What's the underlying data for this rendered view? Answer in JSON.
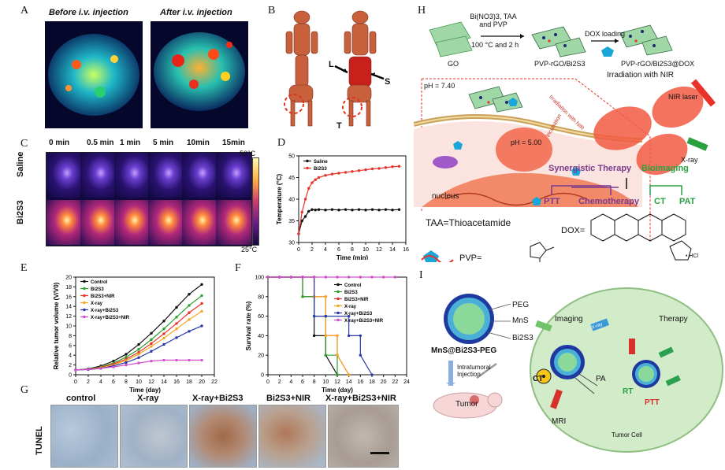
{
  "panel_labels": {
    "A": "A",
    "B": "B",
    "C": "C",
    "D": "D",
    "E": "E",
    "F": "F",
    "G": "G",
    "H": "H",
    "I": "I"
  },
  "panel_a": {
    "before": "Before i.v. injection",
    "after": "After i.v. injection"
  },
  "panel_b": {
    "L": "L",
    "S": "S",
    "T": "T"
  },
  "panel_c": {
    "times": [
      "0 min",
      "0.5 min",
      "1 min",
      "5 min",
      "10min",
      "15min"
    ],
    "rows": [
      "Saline",
      "Bi2S3"
    ],
    "scale_max": "50°C",
    "scale_min": "25°C"
  },
  "panel_g": {
    "side": "TUNEL",
    "cols": [
      "control",
      "X-ray",
      "X-ray+Bi2S3",
      "Bi2S3+NIR",
      "X-ray+Bi2S3+NIR"
    ]
  },
  "panel_h": {
    "reagents": "Bi(NO3)3, TAA and PVP",
    "conditions": "100 °C and 2 h",
    "go": "GO",
    "pvp_rgo": "PVP-rGO/Bi2S3",
    "dox_loading": "DOX loading",
    "pvp_rgo_dox": "PVP-rGO/Bi2S3@DOX",
    "irradiation": "Irradiation with NIR",
    "nir_laser": "NIR laser",
    "xray": "X-ray",
    "ph740": "pH = 7.40",
    "ph500": "pH = 5.00",
    "nucleus": "nucleus",
    "irr_nir": "Irradiation with NIR",
    "incubation": "Incubation",
    "synergistic": "Synergistic Therapy",
    "bioimaging": "Bioimaging",
    "ptt": "PTT",
    "chemo": "Chemotherapy",
    "ct": "CT",
    "pat": "PAT",
    "taa": "TAA=Thioacetamide",
    "pvp_eq": "PVP=",
    "dox_eq": "DOX=",
    "hcl": "• HCl"
  },
  "panel_i": {
    "peg": "PEG",
    "mns": "MnS",
    "bi2s3": "Bi2S3",
    "name": "MnS@Bi2S3-PEG",
    "inj": "Intratumoral Injection",
    "tumor": "Tumor",
    "imaging": "Imaging",
    "therapy": "Therapy",
    "ct": "CT",
    "pa": "PA",
    "mri": "MRI",
    "rt": "RT",
    "ptt": "PTT",
    "cell": "Tumor Cell",
    "xray_tag": "X-ray"
  },
  "chart_data": [
    {
      "type": "line",
      "panel": "D",
      "xlabel": "Time (min)",
      "ylabel": "Temperature (°C)",
      "xlim": [
        0,
        16
      ],
      "ylim": [
        30,
        50
      ],
      "xticks": [
        0,
        2,
        4,
        6,
        8,
        10,
        12,
        14,
        16
      ],
      "yticks": [
        30,
        35,
        40,
        45,
        50
      ],
      "legend_position": "top-left",
      "series": [
        {
          "name": "Saline",
          "color": "#111111",
          "x": [
            0,
            0.5,
            1,
            1.5,
            2,
            2.5,
            3,
            4,
            5,
            6,
            7,
            8,
            9,
            10,
            11,
            12,
            13,
            14,
            15
          ],
          "values": [
            32,
            35,
            36,
            37.2,
            37.6,
            37.5,
            37.6,
            37.5,
            37.6,
            37.5,
            37.6,
            37.5,
            37.6,
            37.5,
            37.6,
            37.5,
            37.6,
            37.5,
            37.6
          ]
        },
        {
          "name": "Bi2S3",
          "color": "#e8322a",
          "x": [
            0,
            0.5,
            1,
            1.5,
            2,
            2.5,
            3,
            4,
            5,
            6,
            7,
            8,
            9,
            10,
            11,
            12,
            13,
            14,
            15
          ],
          "values": [
            32,
            37,
            40,
            42.5,
            43.8,
            44.5,
            45,
            45.5,
            45.8,
            46,
            46.2,
            46.4,
            46.6,
            46.8,
            47,
            47.1,
            47.3,
            47.5,
            47.6
          ]
        }
      ]
    },
    {
      "type": "line",
      "panel": "E",
      "xlabel": "Time (day)",
      "ylabel": "Relative tumor volume (V/V0)",
      "xlim": [
        0,
        22
      ],
      "ylim": [
        0,
        20
      ],
      "xticks": [
        0,
        2,
        4,
        6,
        8,
        10,
        12,
        14,
        16,
        18,
        20,
        22
      ],
      "yticks": [
        0,
        2,
        4,
        6,
        8,
        10,
        12,
        14,
        16,
        18,
        20
      ],
      "legend_position": "top-left",
      "x": [
        0,
        2,
        4,
        6,
        8,
        10,
        12,
        14,
        16,
        18,
        20
      ],
      "series": [
        {
          "name": "Control",
          "color": "#111111",
          "values": [
            1,
            1.2,
            1.8,
            2.8,
            4.2,
            6.2,
            8.5,
            11,
            13.8,
            16.5,
            18.5
          ]
        },
        {
          "name": "Bi2S3",
          "color": "#2ca02c",
          "values": [
            1,
            1.1,
            1.6,
            2.4,
            3.6,
            5.2,
            7.2,
            9.4,
            11.8,
            14.2,
            16.2
          ]
        },
        {
          "name": "Bi2S3+NIR",
          "color": "#e8322a",
          "values": [
            1,
            1.1,
            1.5,
            2.2,
            3.2,
            4.6,
            6.4,
            8.4,
            10.5,
            12.7,
            14.6
          ]
        },
        {
          "name": "X-ray",
          "color": "#f5a623",
          "values": [
            1,
            1.1,
            1.4,
            2,
            2.9,
            4.2,
            5.8,
            7.5,
            9.4,
            11.3,
            13
          ]
        },
        {
          "name": "X-ray+Bi2S3",
          "color": "#2b3aa8",
          "values": [
            1,
            1.05,
            1.3,
            1.8,
            2.5,
            3.5,
            4.8,
            6.2,
            7.6,
            8.9,
            10
          ]
        },
        {
          "name": "X-ray+Bi2S3+NIR",
          "color": "#d44fd0",
          "values": [
            1,
            1.1,
            1.3,
            1.6,
            2,
            2.4,
            2.8,
            3,
            3,
            3,
            3
          ]
        }
      ]
    },
    {
      "type": "line",
      "panel": "F",
      "xlabel": "Time (day)",
      "ylabel": "Survival rate (%)",
      "xlim": [
        0,
        24
      ],
      "ylim": [
        0,
        100
      ],
      "xticks": [
        0,
        2,
        4,
        6,
        8,
        10,
        12,
        14,
        16,
        18,
        20,
        22,
        24
      ],
      "yticks": [
        0,
        20,
        40,
        60,
        80,
        100
      ],
      "legend_position": "right",
      "series": [
        {
          "name": "Control",
          "color": "#111111",
          "x": [
            0,
            2,
            4,
            6,
            6,
            8,
            8,
            10,
            10,
            12
          ],
          "values": [
            100,
            100,
            100,
            100,
            80,
            80,
            40,
            40,
            20,
            0
          ]
        },
        {
          "name": "Bi2S3",
          "color": "#2ca02c",
          "x": [
            0,
            2,
            4,
            6,
            6,
            8,
            8,
            10,
            10,
            12,
            12
          ],
          "values": [
            100,
            100,
            100,
            100,
            80,
            80,
            60,
            60,
            20,
            20,
            0
          ]
        },
        {
          "name": "Bi2S3+NIR",
          "color": "#e8322a",
          "x": [
            0,
            2,
            4,
            6,
            8,
            8,
            10,
            10,
            12,
            12,
            14
          ],
          "values": [
            100,
            100,
            100,
            100,
            100,
            80,
            80,
            40,
            40,
            20,
            0
          ]
        },
        {
          "name": "X-ray",
          "color": "#f5a623",
          "x": [
            0,
            2,
            4,
            6,
            8,
            8,
            10,
            10,
            12,
            12,
            14
          ],
          "values": [
            100,
            100,
            100,
            100,
            100,
            80,
            80,
            40,
            40,
            20,
            0
          ]
        },
        {
          "name": "X-ray+Bi2S3",
          "color": "#2b3aa8",
          "x": [
            0,
            2,
            4,
            6,
            8,
            8,
            10,
            10,
            14,
            14,
            16,
            16,
            18
          ],
          "values": [
            100,
            100,
            100,
            100,
            100,
            60,
            60,
            60,
            60,
            40,
            40,
            20,
            0
          ]
        },
        {
          "name": "X-ray+Bi2S3+NIR",
          "color": "#d44fd0",
          "x": [
            0,
            2,
            4,
            6,
            8,
            10,
            12,
            14,
            16,
            18,
            20,
            22
          ],
          "values": [
            100,
            100,
            100,
            100,
            100,
            100,
            100,
            100,
            100,
            100,
            100,
            100
          ]
        }
      ]
    }
  ]
}
